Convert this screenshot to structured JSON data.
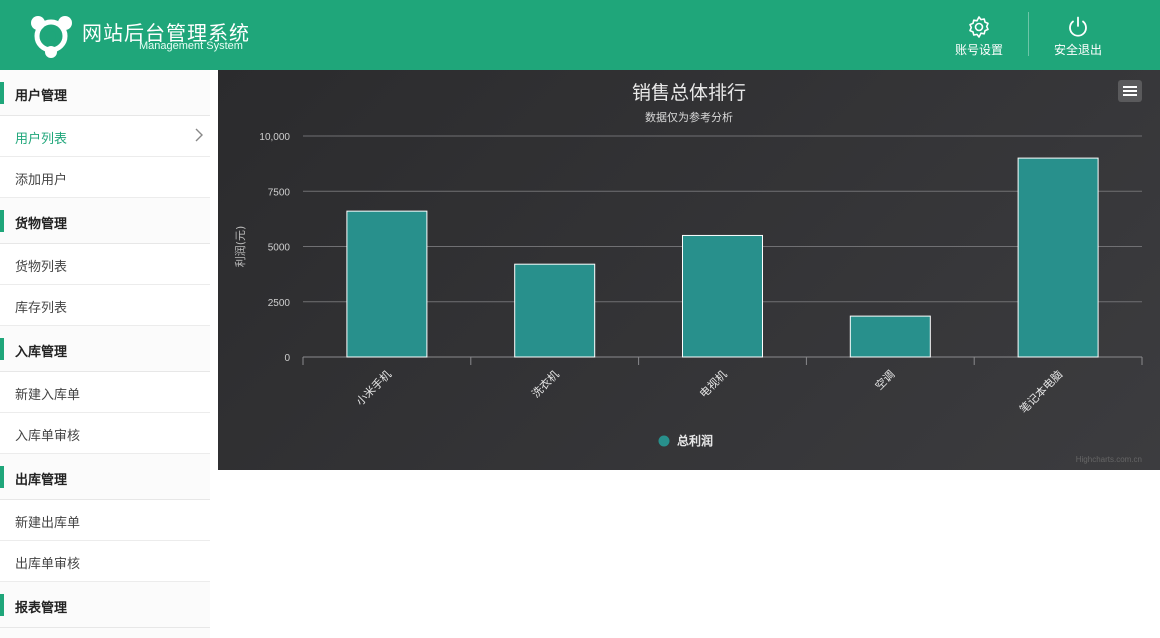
{
  "header": {
    "title": "网站后台管理系统",
    "subtitle": "Management System",
    "account_settings": "账号设置",
    "logout": "安全退出",
    "icons": {
      "logo": "logo-icon",
      "settings": "gear-icon",
      "logout": "power-icon"
    }
  },
  "sidebar": {
    "groups": [
      {
        "label": "用户管理",
        "items": [
          "用户列表",
          "添加用户"
        ]
      },
      {
        "label": "货物管理",
        "items": [
          "货物列表",
          "库存列表"
        ]
      },
      {
        "label": "入库管理",
        "items": [
          "新建入库单",
          "入库单审核"
        ]
      },
      {
        "label": "出库管理",
        "items": [
          "新建出库单",
          "出库单审核"
        ]
      },
      {
        "label": "报表管理",
        "items": []
      }
    ],
    "active_item": "用户列表"
  },
  "chart": {
    "menu_icon": "hamburger-icon",
    "credit": "Highcharts.com.cn"
  },
  "chart_data": {
    "type": "bar",
    "title": "销售总体排行",
    "subtitle": "数据仅为参考分析",
    "categories": [
      "小米手机",
      "洗衣机",
      "电视机",
      "空调",
      "笔记本电脑"
    ],
    "series": [
      {
        "name": "总利润",
        "values": [
          6600,
          4200,
          5500,
          1850,
          9000
        ]
      }
    ],
    "ylabel": "利润(元)",
    "xlabel": "",
    "ylim": [
      0,
      10000
    ],
    "yticks": [
      "0",
      "2500",
      "5000",
      "7500",
      "10,000"
    ],
    "grid": true,
    "legend": "bottom-center",
    "colors": {
      "bar": "#28908c",
      "header": "#1fa67a",
      "accent": "#1fa67a"
    }
  }
}
